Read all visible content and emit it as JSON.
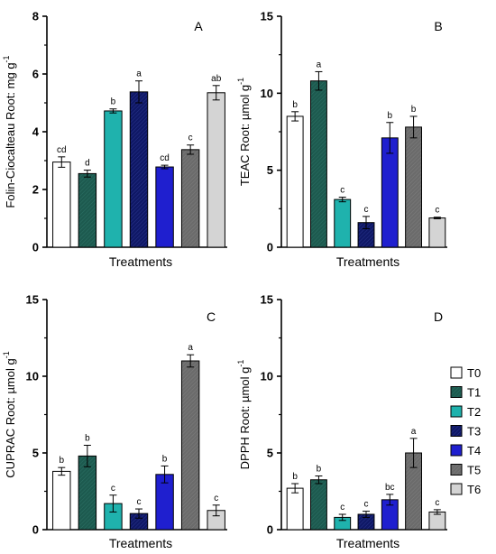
{
  "chart_data": [
    {
      "type": "bar",
      "panel": "A",
      "categories": [
        "T0",
        "T1",
        "T2",
        "T3",
        "T4",
        "T5",
        "T6"
      ],
      "values": [
        2.95,
        2.55,
        4.72,
        5.38,
        2.78,
        3.38,
        5.35
      ],
      "errors": [
        0.18,
        0.12,
        0.07,
        0.38,
        0.06,
        0.16,
        0.25
      ],
      "letters": [
        "cd",
        "d",
        "b",
        "a",
        "cd",
        "c",
        "ab"
      ],
      "ylabel": "Folin-Ciocalteau Root: mg g",
      "ylabel_sup": "-1",
      "xlabel": "Treatments",
      "ylim": [
        0,
        8
      ],
      "yticks": [
        0,
        2,
        4,
        6,
        8
      ]
    },
    {
      "type": "bar",
      "panel": "B",
      "categories": [
        "T0",
        "T1",
        "T2",
        "T3",
        "T4",
        "T5",
        "T6"
      ],
      "values": [
        8.5,
        10.8,
        3.1,
        1.6,
        7.1,
        7.8,
        1.9
      ],
      "errors": [
        0.3,
        0.6,
        0.15,
        0.4,
        1.0,
        0.7,
        0.05
      ],
      "letters": [
        "b",
        "a",
        "c",
        "c",
        "b",
        "b",
        "c"
      ],
      "ylabel": "TEAC Root: µmol g",
      "ylabel_sup": "-1",
      "xlabel": "Treatments",
      "ylim": [
        0,
        15
      ],
      "yticks": [
        0,
        5,
        10,
        15
      ]
    },
    {
      "type": "bar",
      "panel": "C",
      "categories": [
        "T0",
        "T1",
        "T2",
        "T3",
        "T4",
        "T5",
        "T6"
      ],
      "values": [
        3.8,
        4.8,
        1.7,
        1.05,
        3.6,
        11.0,
        1.25
      ],
      "errors": [
        0.25,
        0.7,
        0.55,
        0.3,
        0.55,
        0.4,
        0.35
      ],
      "letters": [
        "b",
        "b",
        "c",
        "c",
        "b",
        "a",
        "c"
      ],
      "ylabel": "CUPRAC Root: µmol g",
      "ylabel_sup": "-1",
      "xlabel": "Treatments",
      "ylim": [
        0,
        15
      ],
      "yticks": [
        0,
        5,
        10,
        15
      ]
    },
    {
      "type": "bar",
      "panel": "D",
      "categories": [
        "T0",
        "T1",
        "T2",
        "T3",
        "T4",
        "T5",
        "T6"
      ],
      "values": [
        2.7,
        3.25,
        0.8,
        1.0,
        1.95,
        5.0,
        1.15
      ],
      "errors": [
        0.3,
        0.25,
        0.2,
        0.2,
        0.35,
        0.95,
        0.15
      ],
      "letters": [
        "b",
        "b",
        "c",
        "c",
        "bc",
        "a",
        "c"
      ],
      "ylabel": "DPPH Root: µmol g",
      "ylabel_sup": "-1",
      "xlabel": "Treatments",
      "ylim": [
        0,
        15
      ],
      "yticks": [
        0,
        5,
        10,
        15
      ]
    }
  ],
  "legend": {
    "placement": "right",
    "entries": [
      {
        "label": "T0",
        "color": "#ffffff"
      },
      {
        "label": "T1",
        "color": "#1d5a4f"
      },
      {
        "label": "T2",
        "color": "#1fb2ad"
      },
      {
        "label": "T3",
        "color": "#0f1866"
      },
      {
        "label": "T4",
        "color": "#1f1fcf"
      },
      {
        "label": "T5",
        "color": "#6b6b6b"
      },
      {
        "label": "T6",
        "color": "#d4d4d4"
      }
    ]
  }
}
